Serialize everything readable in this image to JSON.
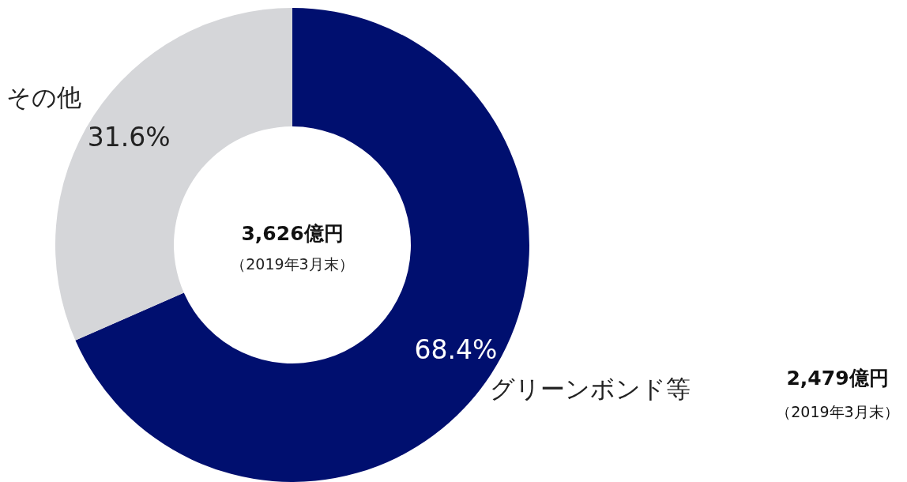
{
  "chart_data": {
    "type": "donut",
    "title": "**3,626億円**",
    "subtitle": "（2019年3月末）",
    "categories": [
      "グリーンボンド等",
      "その他"
    ],
    "values": [
      68.4,
      31.6
    ],
    "colors": [
      "#000f6f",
      "#d5d6d9"
    ],
    "value_labels": [
      "68.4%",
      "31.6%"
    ],
    "annotations": [
      "**2,479億円**",
      "（2019年3月末）"
    ]
  }
}
